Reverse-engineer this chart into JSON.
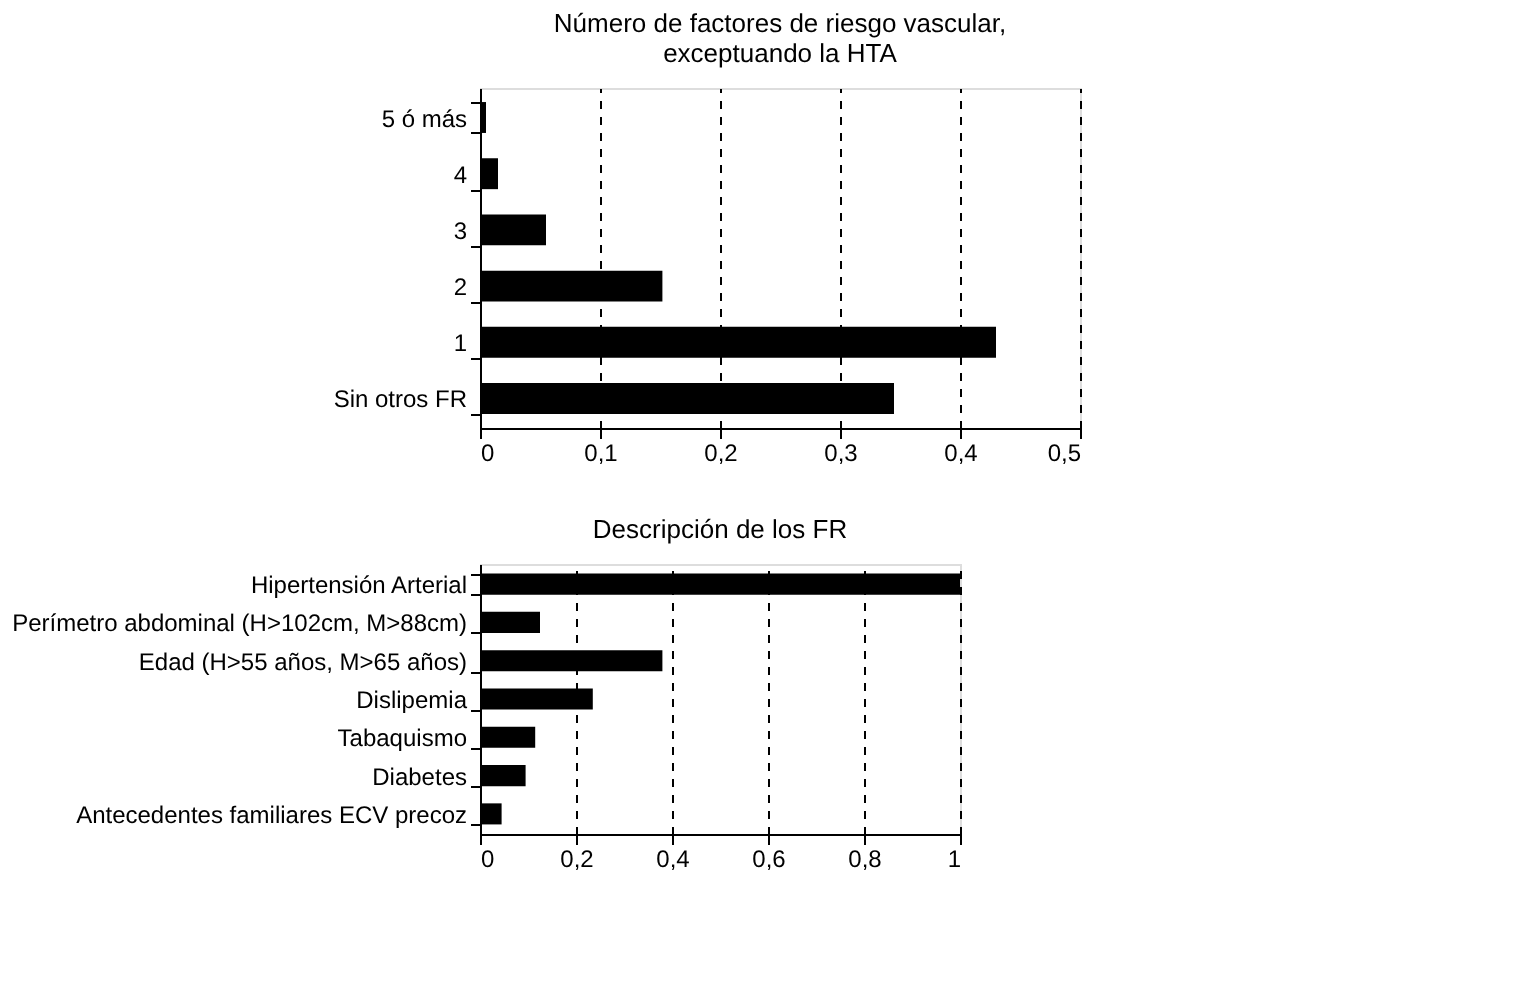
{
  "chart_data": [
    {
      "type": "bar",
      "orientation": "horizontal",
      "title": "Número de factores de riesgo vascular,\nexceptuando la HTA",
      "categories": [
        "5 ó más",
        "4",
        "3",
        "2",
        "1",
        "Sin otros FR"
      ],
      "values": [
        0.005,
        0.015,
        0.055,
        0.152,
        0.43,
        0.345
      ],
      "color": "#000000",
      "xlim": [
        0,
        0.5
      ],
      "xticks": [
        0,
        {
          "value": 0.1,
          "label": "0,1"
        },
        {
          "value": 0.2,
          "label": "0,2"
        },
        {
          "value": 0.3,
          "label": "0,3"
        },
        {
          "value": 0.4,
          "label": "0,4"
        },
        {
          "value": 0.5,
          "label": "0,5"
        }
      ],
      "grid": "x"
    },
    {
      "type": "bar",
      "orientation": "horizontal",
      "title": "Descripción de los FR",
      "categories": [
        "Hipertensión Arterial",
        "Perímetro abdominal (H>102cm, M>88cm)",
        "Edad (H>55 años, M>65 años)",
        "Dislipemia",
        "Tabaquismo",
        "Diabetes",
        "Antecedentes familiares ECV precoz"
      ],
      "values": [
        1.0,
        0.125,
        0.38,
        0.235,
        0.115,
        0.095,
        0.045
      ],
      "color": "#000000",
      "xlim": [
        0,
        1
      ],
      "xticks": [
        0,
        {
          "value": 0.2,
          "label": "0,2"
        },
        {
          "value": 0.4,
          "label": "0,4"
        },
        {
          "value": 0.6,
          "label": "0,6"
        },
        {
          "value": 0.8,
          "label": "0,8"
        },
        1
      ],
      "grid": "x"
    }
  ]
}
